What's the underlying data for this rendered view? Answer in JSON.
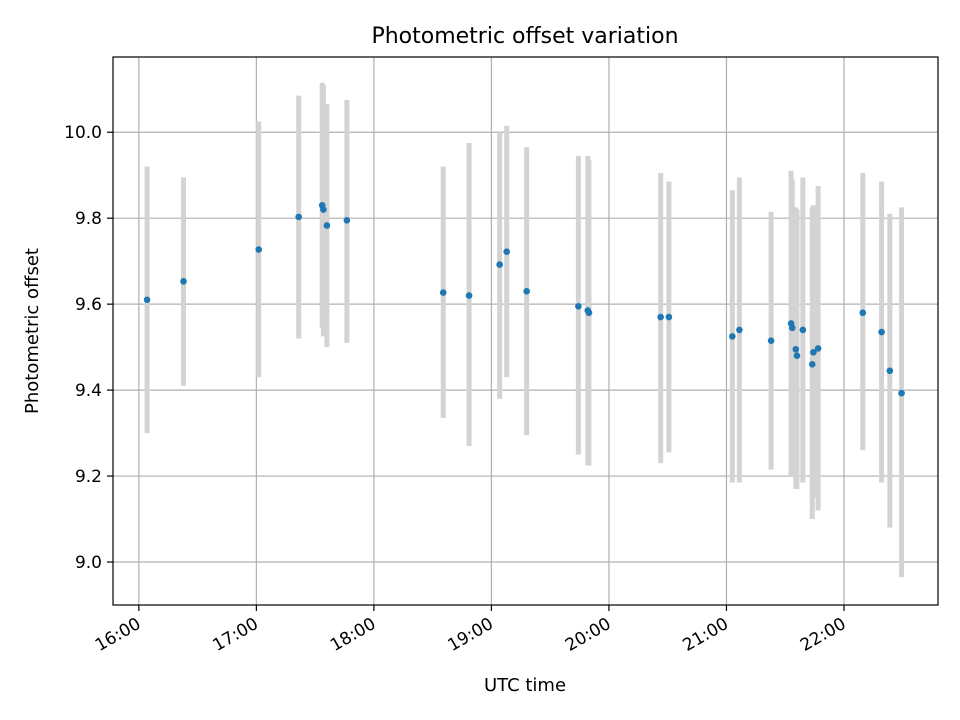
{
  "chart_data": {
    "type": "scatter",
    "title": "Photometric offset variation",
    "xlabel": "UTC time",
    "ylabel": "Photometric offset",
    "x_unit": "hours UTC",
    "xlim": [
      15.78,
      22.8
    ],
    "ylim": [
      8.9,
      10.175
    ],
    "grid": true,
    "x_ticks": [
      {
        "value": 16,
        "label": "16:00"
      },
      {
        "value": 17,
        "label": "17:00"
      },
      {
        "value": 18,
        "label": "18:00"
      },
      {
        "value": 19,
        "label": "19:00"
      },
      {
        "value": 20,
        "label": "20:00"
      },
      {
        "value": 21,
        "label": "21:00"
      },
      {
        "value": 22,
        "label": "22:00"
      }
    ],
    "y_ticks": [
      {
        "value": 9.0,
        "label": "9.0"
      },
      {
        "value": 9.2,
        "label": "9.2"
      },
      {
        "value": 9.4,
        "label": "9.4"
      },
      {
        "value": 9.6,
        "label": "9.6"
      },
      {
        "value": 9.8,
        "label": "9.8"
      },
      {
        "value": 10.0,
        "label": "10.0"
      }
    ],
    "point_color": "#1f77b4",
    "errorbar_color": "#d3d3d3",
    "points": [
      {
        "x": 16.07,
        "y": 9.61,
        "lo": 9.3,
        "hi": 9.92
      },
      {
        "x": 16.38,
        "y": 9.653,
        "lo": 9.41,
        "hi": 9.895
      },
      {
        "x": 17.02,
        "y": 9.727,
        "lo": 9.43,
        "hi": 10.025
      },
      {
        "x": 17.36,
        "y": 9.803,
        "lo": 9.52,
        "hi": 10.085
      },
      {
        "x": 17.56,
        "y": 9.83,
        "lo": 9.545,
        "hi": 10.115
      },
      {
        "x": 17.57,
        "y": 9.82,
        "lo": 9.525,
        "hi": 10.11
      },
      {
        "x": 17.6,
        "y": 9.783,
        "lo": 9.5,
        "hi": 10.065
      },
      {
        "x": 17.77,
        "y": 9.795,
        "lo": 9.51,
        "hi": 10.075
      },
      {
        "x": 18.59,
        "y": 9.627,
        "lo": 9.335,
        "hi": 9.92
      },
      {
        "x": 18.81,
        "y": 9.62,
        "lo": 9.27,
        "hi": 9.975
      },
      {
        "x": 19.07,
        "y": 9.692,
        "lo": 9.38,
        "hi": 10.0
      },
      {
        "x": 19.13,
        "y": 9.722,
        "lo": 9.43,
        "hi": 10.015
      },
      {
        "x": 19.3,
        "y": 9.63,
        "lo": 9.295,
        "hi": 9.965
      },
      {
        "x": 19.74,
        "y": 9.595,
        "lo": 9.25,
        "hi": 9.945
      },
      {
        "x": 19.82,
        "y": 9.585,
        "lo": 9.225,
        "hi": 9.945
      },
      {
        "x": 19.83,
        "y": 9.58,
        "lo": 9.225,
        "hi": 9.935
      },
      {
        "x": 20.44,
        "y": 9.57,
        "lo": 9.23,
        "hi": 9.905
      },
      {
        "x": 20.51,
        "y": 9.57,
        "lo": 9.255,
        "hi": 9.885
      },
      {
        "x": 21.05,
        "y": 9.525,
        "lo": 9.185,
        "hi": 9.865
      },
      {
        "x": 21.11,
        "y": 9.54,
        "lo": 9.185,
        "hi": 9.895
      },
      {
        "x": 21.38,
        "y": 9.515,
        "lo": 9.215,
        "hi": 9.815
      },
      {
        "x": 21.55,
        "y": 9.555,
        "lo": 9.2,
        "hi": 9.91
      },
      {
        "x": 21.56,
        "y": 9.545,
        "lo": 9.2,
        "hi": 9.89
      },
      {
        "x": 21.59,
        "y": 9.495,
        "lo": 9.17,
        "hi": 9.825
      },
      {
        "x": 21.6,
        "y": 9.48,
        "lo": 9.17,
        "hi": 9.82
      },
      {
        "x": 21.65,
        "y": 9.54,
        "lo": 9.185,
        "hi": 9.895
      },
      {
        "x": 21.73,
        "y": 9.46,
        "lo": 9.1,
        "hi": 9.825
      },
      {
        "x": 21.74,
        "y": 9.488,
        "lo": 9.15,
        "hi": 9.83
      },
      {
        "x": 21.78,
        "y": 9.497,
        "lo": 9.12,
        "hi": 9.875
      },
      {
        "x": 22.16,
        "y": 9.58,
        "lo": 9.26,
        "hi": 9.905
      },
      {
        "x": 22.32,
        "y": 9.535,
        "lo": 9.185,
        "hi": 9.885
      },
      {
        "x": 22.39,
        "y": 9.445,
        "lo": 9.08,
        "hi": 9.81
      },
      {
        "x": 22.49,
        "y": 9.393,
        "lo": 8.965,
        "hi": 9.825
      }
    ]
  }
}
